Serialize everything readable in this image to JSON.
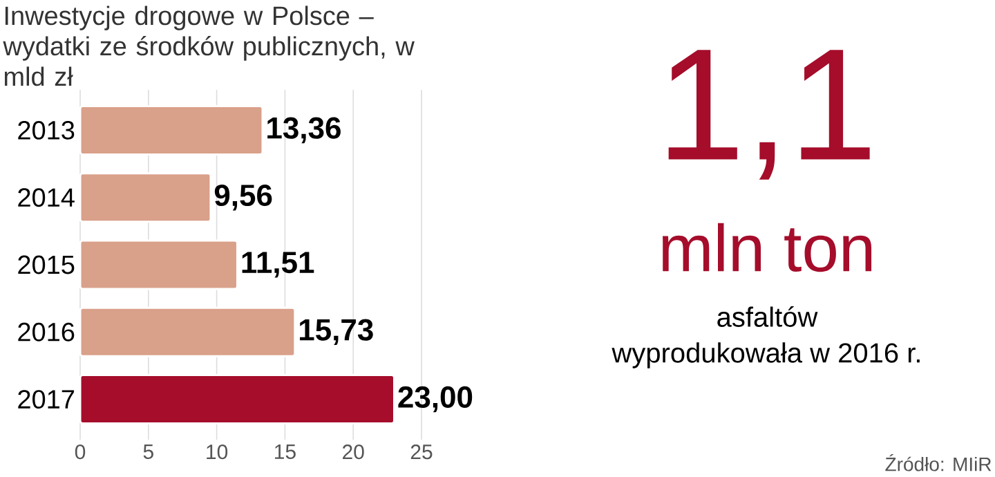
{
  "chart_data": [
    {
      "type": "bar",
      "orientation": "horizontal",
      "title": "Inwestycje drogowe w Polsce – wydatki ze środków publicznych, w mld zł",
      "categories": [
        "2013",
        "2014",
        "2015",
        "2016",
        "2017"
      ],
      "values": [
        13.36,
        9.56,
        11.51,
        15.73,
        23.0
      ],
      "colors": [
        "#d9a08a",
        "#d9a08a",
        "#d9a08a",
        "#d9a08a",
        "#a50d2b"
      ],
      "value_labels": [
        "13,36",
        "9,56",
        "11,51",
        "15,73",
        "23,00"
      ],
      "xlim": [
        0,
        25
      ],
      "xticks": [
        0,
        5,
        10,
        15,
        20,
        25
      ],
      "grid": "x"
    },
    {
      "type": "other",
      "title": "1,1",
      "subtitle": "mln ton",
      "annotations": [
        "asfaltów",
        "wyprodukowała w 2016 r.",
        "Źródło: MIiR"
      ]
    }
  ]
}
